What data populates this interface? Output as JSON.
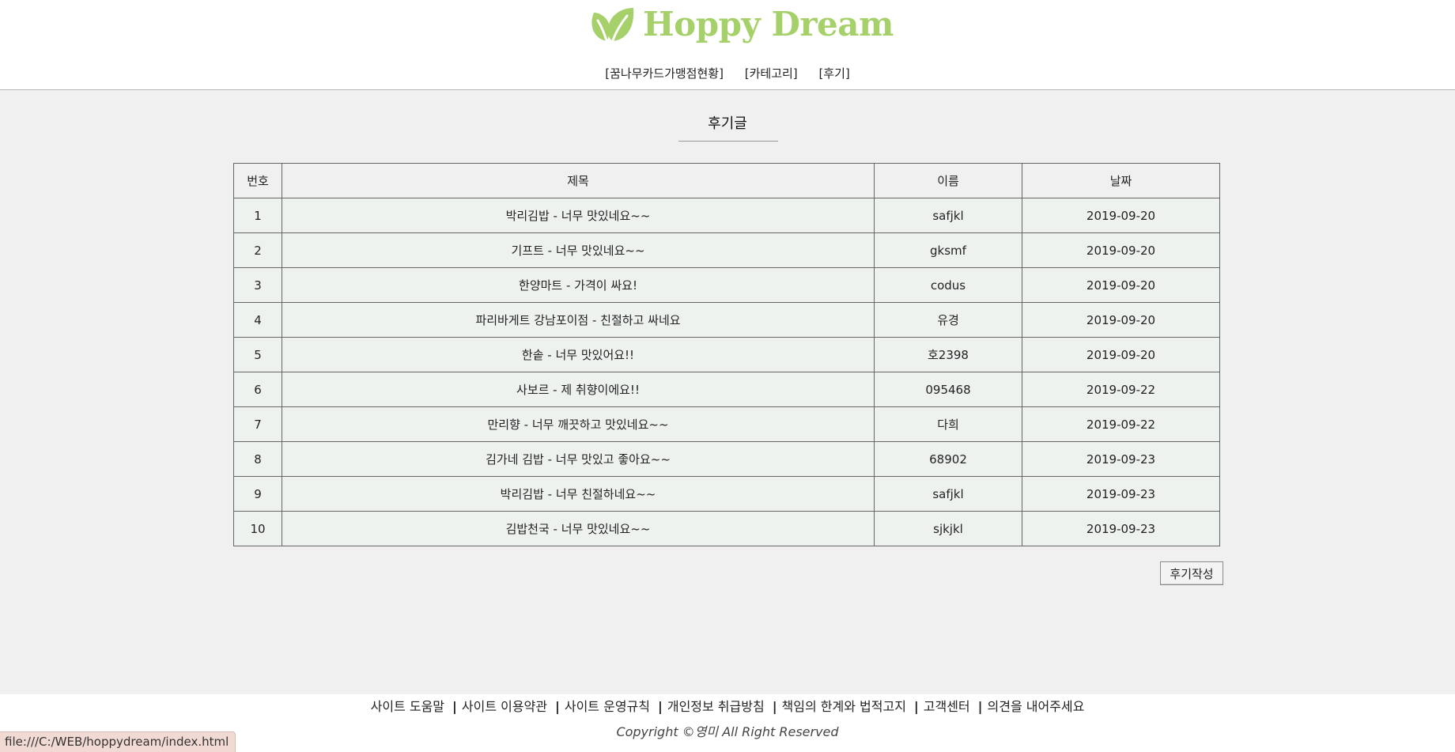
{
  "header": {
    "logo_text": "Hoppy Dream",
    "brand_color": "#a6d16a",
    "nav": [
      {
        "label": "꿈나무카드가맹점현황"
      },
      {
        "label": "카테고리"
      },
      {
        "label": "후기"
      }
    ]
  },
  "main": {
    "section_title": "후기글",
    "table": {
      "columns": [
        "번호",
        "제목",
        "이름",
        "날짜"
      ],
      "rows": [
        {
          "no": "1",
          "title": "박리김밥 - 너무 맛있네요~~",
          "name": "safjkl",
          "date": "2019-09-20"
        },
        {
          "no": "2",
          "title": "기프트 - 너무 맛있네요~~",
          "name": "gksmf",
          "date": "2019-09-20"
        },
        {
          "no": "3",
          "title": "한양마트 - 가격이 싸요!",
          "name": "codus",
          "date": "2019-09-20"
        },
        {
          "no": "4",
          "title": "파리바게트 강남포이점 - 친절하고 싸네요",
          "name": "유경",
          "date": "2019-09-20"
        },
        {
          "no": "5",
          "title": "한솥 - 너무 맛있어요!!",
          "name": "호2398",
          "date": "2019-09-20"
        },
        {
          "no": "6",
          "title": "사보르 - 제 취향이에요!!",
          "name": "095468",
          "date": "2019-09-22"
        },
        {
          "no": "7",
          "title": "만리향 - 너무 깨끗하고 맛있네요~~",
          "name": "다희",
          "date": "2019-09-22"
        },
        {
          "no": "8",
          "title": "김가네 김밥 - 너무 맛있고 좋아요~~",
          "name": "68902",
          "date": "2019-09-23"
        },
        {
          "no": "9",
          "title": "박리김밥 - 너무 친절하네요~~",
          "name": "safjkl",
          "date": "2019-09-23"
        },
        {
          "no": "10",
          "title": "김밥천국 - 너무 맛있네요~~",
          "name": "sjkjkl",
          "date": "2019-09-23"
        }
      ]
    },
    "write_button": "후기작성"
  },
  "footer": {
    "links": [
      {
        "label": "사이트 도움말"
      },
      {
        "label": "사이트 이용약관"
      },
      {
        "label": "사이트 운영규칙"
      },
      {
        "label": "개인정보 취급방침"
      },
      {
        "label": "책임의 한계와 법적고지"
      },
      {
        "label": "고객센터"
      },
      {
        "label": "의견을 내어주세요"
      }
    ],
    "copyright": "Copyright ©영미 All Right Reserved"
  },
  "status_bar": {
    "url": "file:///C:/WEB/hoppydream/index.html"
  }
}
